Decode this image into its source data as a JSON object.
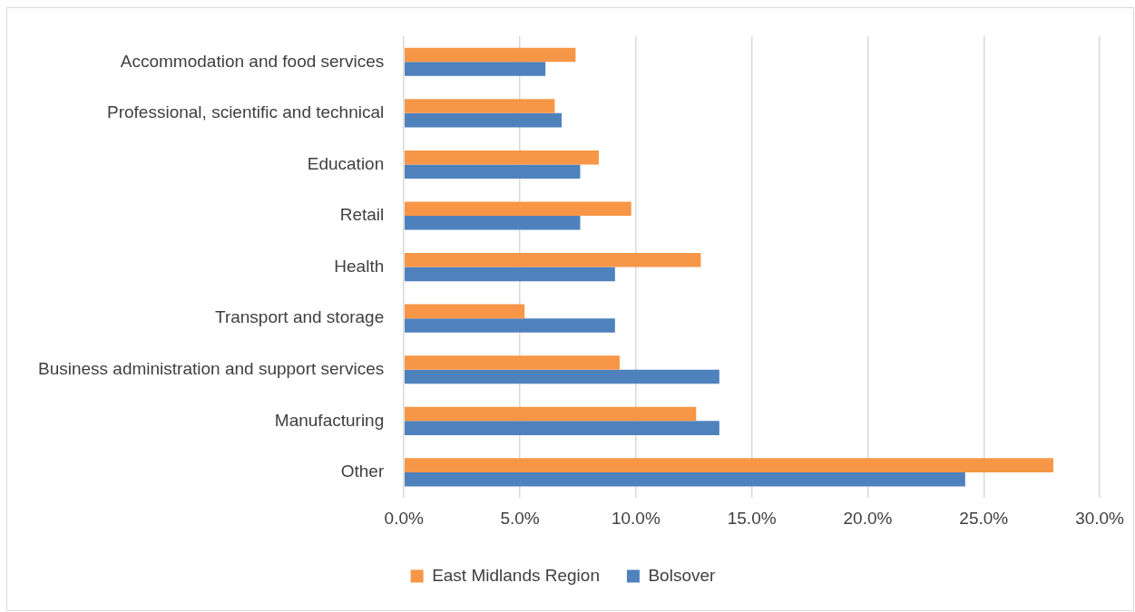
{
  "chart_data": {
    "type": "bar",
    "orientation": "horizontal",
    "categories": [
      "Accommodation and food services",
      "Professional, scientific and technical",
      "Education",
      "Retail",
      "Health",
      "Transport and storage",
      "Business administration and support services",
      "Manufacturing",
      "Other"
    ],
    "series": [
      {
        "name": "East Midlands Region",
        "color": "#f79646",
        "values": [
          7.4,
          6.5,
          8.4,
          9.8,
          12.8,
          5.2,
          9.3,
          12.6,
          28.0
        ]
      },
      {
        "name": "Bolsover",
        "color": "#4f81bd",
        "values": [
          6.1,
          6.8,
          7.6,
          7.6,
          9.1,
          9.1,
          13.6,
          13.6,
          24.2
        ]
      }
    ],
    "xlim": [
      0,
      30
    ],
    "xticks": [
      {
        "value": 0,
        "label": "0.0%"
      },
      {
        "value": 5,
        "label": "5.0%"
      },
      {
        "value": 10,
        "label": "10.0%"
      },
      {
        "value": 15,
        "label": "15.0%"
      },
      {
        "value": 20,
        "label": "20.0%"
      },
      {
        "value": 25,
        "label": "25.0%"
      },
      {
        "value": 30,
        "label": "30.0%"
      }
    ],
    "grid": "x",
    "legend": "bottom"
  }
}
